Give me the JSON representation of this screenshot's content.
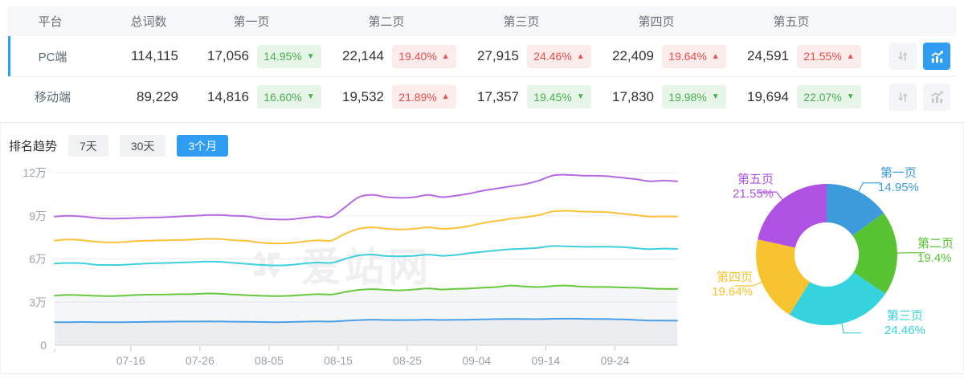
{
  "table": {
    "headers": [
      "平台",
      "总词数",
      "第一页",
      "第二页",
      "第三页",
      "第四页",
      "第五页"
    ],
    "rows": [
      {
        "platform": "PC端",
        "total": "114,115",
        "pages": [
          {
            "value": "17,056",
            "pct": "14.95%",
            "dir": "down",
            "arrow": "▼"
          },
          {
            "value": "22,144",
            "pct": "19.40%",
            "dir": "up",
            "arrow": "▲"
          },
          {
            "value": "27,915",
            "pct": "24.46%",
            "dir": "up",
            "arrow": "▲"
          },
          {
            "value": "22,409",
            "pct": "19.64%",
            "dir": "up",
            "arrow": "▲"
          },
          {
            "value": "24,591",
            "pct": "21.55%",
            "dir": "up",
            "arrow": "▲"
          }
        ]
      },
      {
        "platform": "移动端",
        "total": "89,229",
        "pages": [
          {
            "value": "14,816",
            "pct": "16.60%",
            "dir": "down",
            "arrow": "▼"
          },
          {
            "value": "19,532",
            "pct": "21.89%",
            "dir": "up",
            "arrow": "▲"
          },
          {
            "value": "17,357",
            "pct": "19.45%",
            "dir": "down",
            "arrow": "▼"
          },
          {
            "value": "17,830",
            "pct": "19.98%",
            "dir": "down",
            "arrow": "▼"
          },
          {
            "value": "19,694",
            "pct": "22.07%",
            "dir": "down",
            "arrow": "▼"
          }
        ]
      }
    ]
  },
  "trend": {
    "title": "排名趋势",
    "tabs": [
      {
        "label": "7天",
        "active": false
      },
      {
        "label": "30天",
        "active": false
      },
      {
        "label": "3个月",
        "active": true
      }
    ]
  },
  "watermark": {
    "text": "爱站网"
  },
  "accent_color": "#2e9df2",
  "chart_data": [
    {
      "type": "line",
      "stacked_cumulative": true,
      "values_unit": "万",
      "ylim": [
        0,
        120000
      ],
      "y_tick_values": [
        0,
        3,
        6,
        9,
        12
      ],
      "y_tick_labels": [
        "0",
        "3万",
        "6万",
        "9万",
        "12万"
      ],
      "x_range": [
        "07-05",
        "10-03"
      ],
      "n_points": 46,
      "x_tick_labels": [
        "07-16",
        "07-26",
        "08-05",
        "08-15",
        "08-25",
        "09-04",
        "09-14",
        "09-24"
      ],
      "x_tick_positions": [
        5.5,
        10.5,
        15.5,
        20.5,
        25.5,
        30.5,
        35.5,
        40.5
      ],
      "grid": true,
      "series": [
        {
          "name": "第一页",
          "color": "#4aa0e8",
          "area": true,
          "values": [
            1.6,
            1.61,
            1.62,
            1.61,
            1.6,
            1.61,
            1.62,
            1.63,
            1.64,
            1.65,
            1.65,
            1.66,
            1.65,
            1.64,
            1.63,
            1.62,
            1.61,
            1.62,
            1.64,
            1.66,
            1.65,
            1.7,
            1.75,
            1.78,
            1.76,
            1.75,
            1.76,
            1.78,
            1.76,
            1.77,
            1.78,
            1.8,
            1.82,
            1.83,
            1.82,
            1.82,
            1.84,
            1.85,
            1.84,
            1.83,
            1.82,
            1.8,
            1.76,
            1.72,
            1.72,
            1.71
          ]
        },
        {
          "name": "第二页",
          "color": "#67c93e",
          "area": true,
          "values": [
            3.45,
            3.5,
            3.48,
            3.44,
            3.42,
            3.45,
            3.5,
            3.52,
            3.53,
            3.55,
            3.56,
            3.6,
            3.58,
            3.52,
            3.48,
            3.44,
            3.42,
            3.44,
            3.5,
            3.55,
            3.53,
            3.7,
            3.85,
            3.9,
            3.85,
            3.82,
            3.88,
            3.95,
            3.88,
            3.92,
            3.95,
            4.0,
            4.05,
            4.15,
            4.08,
            4.05,
            4.12,
            4.15,
            4.08,
            4.05,
            4.05,
            4.02,
            4.0,
            3.95,
            3.92,
            3.92
          ]
        },
        {
          "name": "第三页",
          "color": "#3ed0dc",
          "area": false,
          "values": [
            5.68,
            5.72,
            5.7,
            5.6,
            5.58,
            5.6,
            5.65,
            5.7,
            5.72,
            5.75,
            5.78,
            5.82,
            5.8,
            5.72,
            5.65,
            5.58,
            5.55,
            5.58,
            5.68,
            5.75,
            5.73,
            6.0,
            6.25,
            6.3,
            6.2,
            6.18,
            6.22,
            6.3,
            6.22,
            6.28,
            6.4,
            6.5,
            6.6,
            6.68,
            6.72,
            6.78,
            6.9,
            6.88,
            6.85,
            6.85,
            6.85,
            6.82,
            6.75,
            6.68,
            6.72,
            6.7
          ]
        },
        {
          "name": "第四页",
          "color": "#fbc337",
          "area": false,
          "values": [
            7.28,
            7.35,
            7.3,
            7.2,
            7.15,
            7.18,
            7.25,
            7.28,
            7.3,
            7.32,
            7.35,
            7.4,
            7.38,
            7.3,
            7.25,
            7.12,
            7.08,
            7.1,
            7.2,
            7.3,
            7.28,
            7.75,
            8.1,
            8.2,
            8.1,
            8.05,
            8.1,
            8.2,
            8.1,
            8.15,
            8.3,
            8.5,
            8.65,
            8.8,
            8.9,
            9.05,
            9.3,
            9.35,
            9.3,
            9.28,
            9.25,
            9.15,
            9.05,
            8.95,
            8.95,
            8.95
          ]
        },
        {
          "name": "第五页",
          "color": "#b36ae2",
          "area": false,
          "values": [
            8.95,
            9.0,
            8.95,
            8.85,
            8.8,
            8.82,
            8.85,
            8.88,
            8.9,
            8.95,
            9.0,
            9.05,
            9.05,
            9.0,
            8.95,
            8.8,
            8.75,
            8.75,
            8.85,
            8.95,
            8.92,
            9.6,
            10.3,
            10.45,
            10.3,
            10.25,
            10.3,
            10.45,
            10.3,
            10.4,
            10.55,
            10.75,
            10.9,
            11.05,
            11.2,
            11.45,
            11.8,
            11.85,
            11.8,
            11.78,
            11.75,
            11.65,
            11.55,
            11.4,
            11.45,
            11.4
          ]
        }
      ]
    },
    {
      "type": "pie",
      "donut": true,
      "labels": [
        "第一页",
        "第二页",
        "第三页",
        "第四页",
        "第五页"
      ],
      "values": [
        14.95,
        19.4,
        24.46,
        19.64,
        21.55
      ],
      "display_values": [
        "14.95%",
        "19.4%",
        "24.46%",
        "19.64%",
        "21.55%"
      ],
      "colors": [
        "#3d9bdb",
        "#57c232",
        "#35d3dd",
        "#f7c32e",
        "#ad52e3"
      ],
      "start_angle": "top",
      "direction": "clockwise"
    }
  ]
}
